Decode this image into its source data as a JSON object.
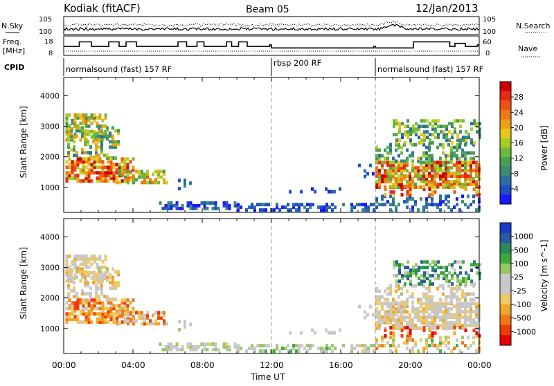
{
  "header": {
    "radar": "Kodiak (fitACF)",
    "beam": "Beam 05",
    "date": "12/Jan/2013"
  },
  "noise_panel": {
    "left_label": "N.Sky",
    "right_label": "N.Search",
    "ticks": [
      "10^5",
      "10^0"
    ]
  },
  "freq_panel": {
    "left_label_1": "Freq.",
    "left_label_2": "[MHz]",
    "left_ticks": [
      "18",
      "8"
    ],
    "right_label": "Nave",
    "right_ticks": [
      "60",
      "0"
    ]
  },
  "cpid": {
    "label": "CPID",
    "segments": [
      {
        "name": "normalsound (fast) 157 RF",
        "start_h": 0,
        "end_h": 12
      },
      {
        "name": "rbsp 200 RF",
        "start_h": 12,
        "end_h": 18
      },
      {
        "name": "normalsound (fast) 157 RF",
        "start_h": 18,
        "end_h": 24
      }
    ]
  },
  "colors": {
    "power_scale": [
      "#1a1aff",
      "#2050c8",
      "#2a6ea0",
      "#3c8a78",
      "#4aa050",
      "#6dbb3c",
      "#aacc22",
      "#e6c81e",
      "#f0a014",
      "#f07814",
      "#f05014",
      "#e62814",
      "#cc0000"
    ],
    "velocity_scale": [
      "#e60000",
      "#f03c00",
      "#f07814",
      "#f0a828",
      "#f0c864",
      "#c8c8c8",
      "#c8c8c8",
      "#96c864",
      "#3caa3c",
      "#2a8a5a",
      "#2a5aa0",
      "#1a3ccc"
    ]
  },
  "chart_data": [
    {
      "type": "heatmap",
      "name": "power",
      "x_start": "00:00",
      "x_end": "00:00",
      "ylabel": "Slant Range [km]",
      "ylim": [
        180,
        4600
      ],
      "yticks": [
        "1000",
        "2000",
        "3000",
        "4000"
      ],
      "colorbar": {
        "label": "Power [dB]",
        "ticks": [
          "4",
          "8",
          "12",
          "16",
          "20",
          "24",
          "28"
        ],
        "range": [
          0,
          30
        ]
      }
    },
    {
      "type": "heatmap",
      "name": "velocity",
      "x_start": "00:00",
      "x_end": "00:00",
      "xlabel": "Time UT",
      "xticks": [
        "00:00",
        "04:00",
        "08:00",
        "12:00",
        "16:00",
        "20:00",
        "00:00"
      ],
      "ylabel": "Slant Range [km]",
      "ylim": [
        180,
        4600
      ],
      "yticks": [
        "1000",
        "2000",
        "3000",
        "4000"
      ],
      "colorbar": {
        "label": "Velocity [m s^-1]",
        "ticks": [
          "1000",
          "500",
          "100",
          "25",
          "-25",
          "-100",
          "-500",
          "-1000"
        ]
      }
    }
  ]
}
